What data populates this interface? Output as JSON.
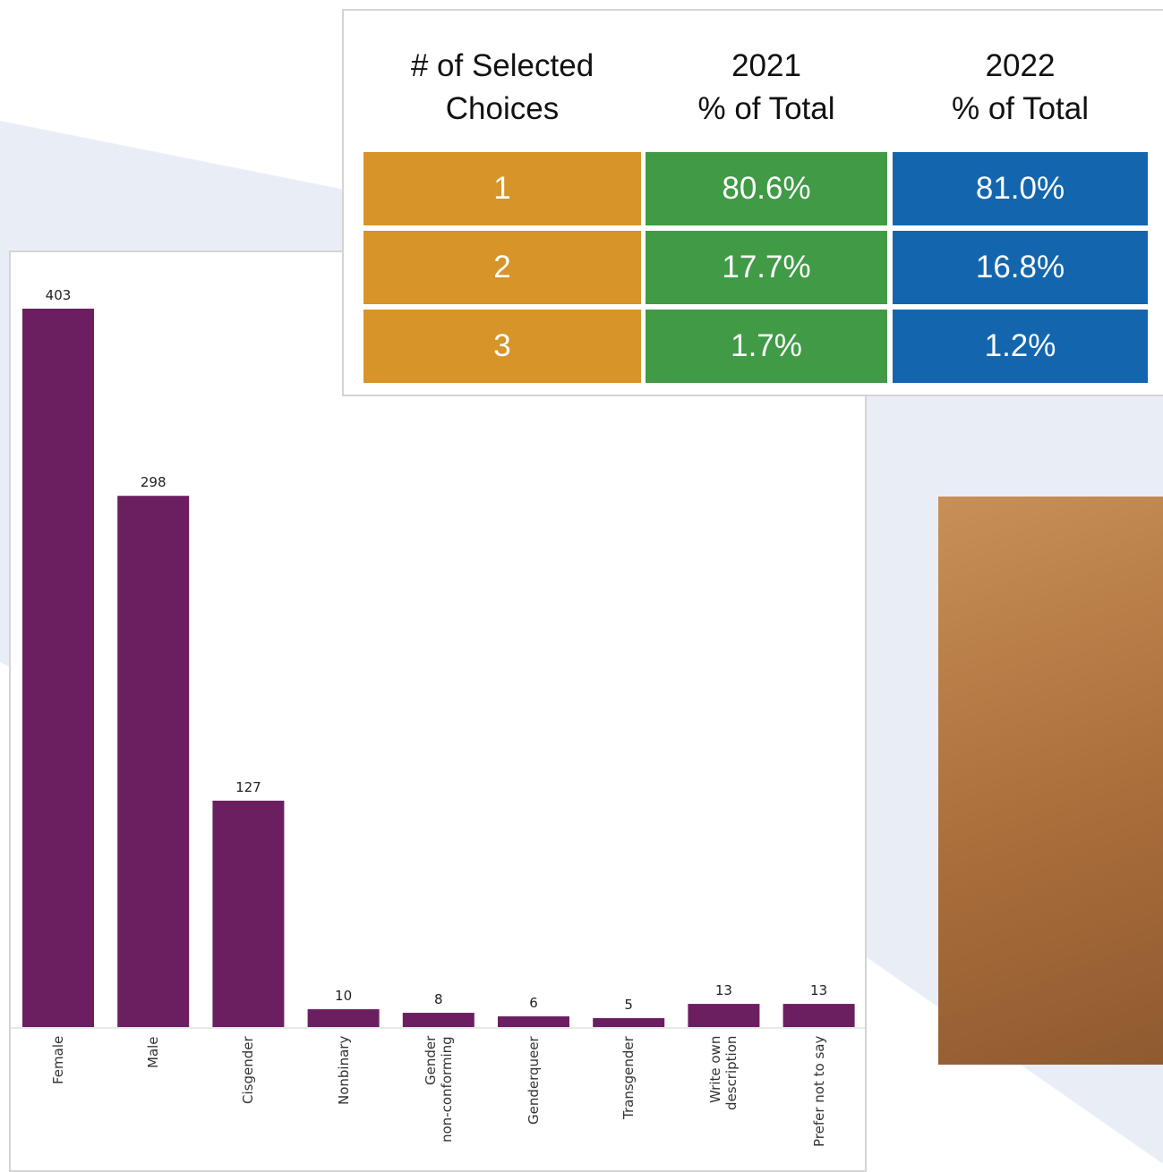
{
  "chart_data": {
    "type": "bar",
    "categories": [
      "Female",
      "Male",
      "Cisgender",
      "Nonbinary",
      "Gender\nnon-conforming",
      "Genderqueer",
      "Transgender",
      "Write own\ndescription",
      "Prefer not to say"
    ],
    "values": [
      403,
      298,
      127,
      10,
      8,
      6,
      5,
      13,
      13
    ],
    "color": "#6b1f61"
  },
  "table": {
    "columns": [
      "# of Selected\nChoices",
      "2021\n% of Total",
      "2022\n% of Total"
    ],
    "rows": [
      [
        "1",
        "80.6%",
        "81.0%"
      ],
      [
        "2",
        "17.7%",
        "16.8%"
      ],
      [
        "3",
        "1.7%",
        "1.2%"
      ]
    ]
  }
}
